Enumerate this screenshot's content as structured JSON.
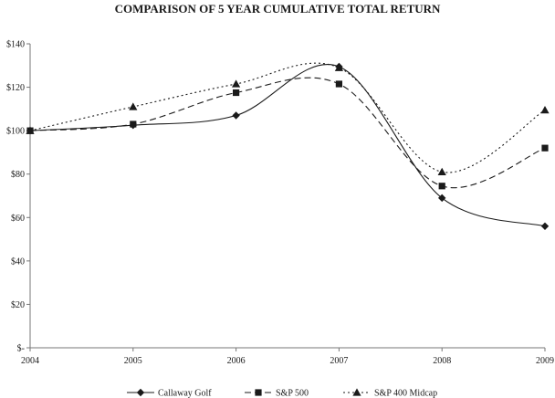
{
  "chart_data": {
    "type": "line",
    "title": "COMPARISON OF 5 YEAR CUMULATIVE TOTAL RETURN",
    "xlabel": "",
    "ylabel": "",
    "x": [
      "2004",
      "2005",
      "2006",
      "2007",
      "2008",
      "2009"
    ],
    "ylim": [
      0,
      140
    ],
    "yticks": [
      0,
      20,
      40,
      60,
      80,
      100,
      120,
      140
    ],
    "ytick_labels": [
      "$-",
      "$20",
      "$40",
      "$60",
      "$80",
      "$100",
      "$120",
      "$140"
    ],
    "grid": false,
    "legend_position": "bottom",
    "series": [
      {
        "name": "Callaway Golf",
        "values": [
          100,
          102.5,
          107,
          129.5,
          69,
          56
        ],
        "marker": "diamond",
        "dash": "solid",
        "color": "#1a1a1a"
      },
      {
        "name": "S&P 500",
        "values": [
          100,
          103,
          117.5,
          121.5,
          74.5,
          92
        ],
        "marker": "square",
        "dash": "dashed",
        "color": "#1a1a1a"
      },
      {
        "name": "S&P 400 Midcap",
        "values": [
          100,
          111,
          121.5,
          129,
          81,
          109.5
        ],
        "marker": "triangle",
        "dash": "dotted",
        "color": "#1a1a1a"
      }
    ]
  }
}
